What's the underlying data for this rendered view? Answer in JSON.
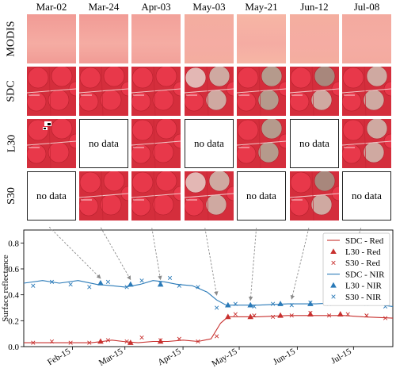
{
  "columns": [
    "Mar-02",
    "Mar-24",
    "Apr-03",
    "May-03",
    "May-21",
    "Jun-12",
    "Jul-08"
  ],
  "rows": [
    {
      "label": "MODIS",
      "key": "modis",
      "tiles": [
        "img",
        "img",
        "img",
        "img",
        "img",
        "img",
        "img"
      ]
    },
    {
      "label": "SDC",
      "key": "sdc",
      "tiles": [
        "img",
        "img",
        "img",
        "img",
        "img",
        "img",
        "img"
      ]
    },
    {
      "label": "L30",
      "key": "l30",
      "tiles": [
        "img",
        "no data",
        "img",
        "no data",
        "img",
        "no data",
        "img"
      ]
    },
    {
      "label": "S30",
      "key": "s30",
      "tiles": [
        "no data",
        "img",
        "img",
        "img",
        "no data",
        "img",
        "no data"
      ]
    }
  ],
  "no_data_text": "no data",
  "colors": {
    "red": "#c8312f",
    "nir": "#2a7ab8",
    "arrow": "#8a8a8a"
  },
  "chart_data": {
    "type": "line",
    "ylabel": "Surface reflectance",
    "xlabel": "",
    "ylim": [
      0,
      0.9
    ],
    "yticks": [
      0,
      0.2,
      0.4,
      0.6,
      0.8
    ],
    "xlim": [
      "2019-01-20",
      "2019-08-05"
    ],
    "xticks": [
      {
        "date": "2019-02-15",
        "label": "Feb-15"
      },
      {
        "date": "2019-03-15",
        "label": "Mar-15"
      },
      {
        "date": "2019-04-15",
        "label": "Apr-15"
      },
      {
        "date": "2019-05-15",
        "label": "May-15"
      },
      {
        "date": "2019-06-15",
        "label": "Jun-15"
      },
      {
        "date": "2019-07-15",
        "label": "Jul-15"
      }
    ],
    "series": [
      {
        "name": "SDC - Red",
        "kind": "line",
        "color": "#c8312f",
        "points": [
          [
            "2019-01-20",
            0.03
          ],
          [
            "2019-02-10",
            0.03
          ],
          [
            "2019-02-25",
            0.03
          ],
          [
            "2019-03-03",
            0.04
          ],
          [
            "2019-03-08",
            0.05
          ],
          [
            "2019-03-14",
            0.04
          ],
          [
            "2019-03-22",
            0.03
          ],
          [
            "2019-03-30",
            0.04
          ],
          [
            "2019-04-07",
            0.04
          ],
          [
            "2019-04-15",
            0.05
          ],
          [
            "2019-04-23",
            0.04
          ],
          [
            "2019-04-30",
            0.06
          ],
          [
            "2019-05-05",
            0.18
          ],
          [
            "2019-05-09",
            0.23
          ],
          [
            "2019-05-25",
            0.23
          ],
          [
            "2019-06-10",
            0.24
          ],
          [
            "2019-06-25",
            0.24
          ],
          [
            "2019-07-10",
            0.24
          ],
          [
            "2019-07-20",
            0.23
          ],
          [
            "2019-08-05",
            0.22
          ]
        ]
      },
      {
        "name": "L30 - Red",
        "kind": "triangle",
        "color": "#c8312f",
        "points": [
          [
            "2019-03-02",
            0.04
          ],
          [
            "2019-03-18",
            0.03
          ],
          [
            "2019-04-03",
            0.04
          ],
          [
            "2019-05-09",
            0.23
          ],
          [
            "2019-05-21",
            0.23
          ],
          [
            "2019-06-06",
            0.24
          ],
          [
            "2019-06-22",
            0.25
          ],
          [
            "2019-07-08",
            0.25
          ]
        ]
      },
      {
        "name": "S30 - Red",
        "kind": "x",
        "color": "#c8312f",
        "points": [
          [
            "2019-01-25",
            0.03
          ],
          [
            "2019-02-04",
            0.04
          ],
          [
            "2019-02-14",
            0.03
          ],
          [
            "2019-02-24",
            0.03
          ],
          [
            "2019-03-06",
            0.05
          ],
          [
            "2019-03-16",
            0.04
          ],
          [
            "2019-03-24",
            0.07
          ],
          [
            "2019-04-03",
            0.05
          ],
          [
            "2019-04-13",
            0.06
          ],
          [
            "2019-04-23",
            0.04
          ],
          [
            "2019-05-03",
            0.08
          ],
          [
            "2019-05-13",
            0.25
          ],
          [
            "2019-05-23",
            0.24
          ],
          [
            "2019-06-02",
            0.23
          ],
          [
            "2019-06-12",
            0.24
          ],
          [
            "2019-06-22",
            0.26
          ],
          [
            "2019-07-02",
            0.24
          ],
          [
            "2019-07-12",
            0.25
          ],
          [
            "2019-07-22",
            0.24
          ],
          [
            "2019-08-01",
            0.22
          ]
        ]
      },
      {
        "name": "SDC - NIR",
        "kind": "line",
        "color": "#2a7ab8",
        "points": [
          [
            "2019-01-20",
            0.49
          ],
          [
            "2019-01-30",
            0.51
          ],
          [
            "2019-02-08",
            0.49
          ],
          [
            "2019-02-18",
            0.51
          ],
          [
            "2019-02-28",
            0.48
          ],
          [
            "2019-03-08",
            0.47
          ],
          [
            "2019-03-15",
            0.46
          ],
          [
            "2019-03-23",
            0.48
          ],
          [
            "2019-03-30",
            0.51
          ],
          [
            "2019-04-05",
            0.5
          ],
          [
            "2019-04-12",
            0.48
          ],
          [
            "2019-04-20",
            0.47
          ],
          [
            "2019-04-28",
            0.42
          ],
          [
            "2019-05-03",
            0.36
          ],
          [
            "2019-05-08",
            0.32
          ],
          [
            "2019-05-25",
            0.32
          ],
          [
            "2019-06-10",
            0.33
          ],
          [
            "2019-06-25",
            0.33
          ],
          [
            "2019-07-08",
            0.34
          ],
          [
            "2019-07-25",
            0.33
          ],
          [
            "2019-08-05",
            0.31
          ]
        ]
      },
      {
        "name": "L30 - NIR",
        "kind": "triangle",
        "color": "#2a7ab8",
        "points": [
          [
            "2019-03-02",
            0.49
          ],
          [
            "2019-03-18",
            0.48
          ],
          [
            "2019-04-03",
            0.48
          ],
          [
            "2019-05-09",
            0.32
          ],
          [
            "2019-05-21",
            0.32
          ],
          [
            "2019-06-06",
            0.33
          ],
          [
            "2019-06-22",
            0.33
          ],
          [
            "2019-07-08",
            0.34
          ]
        ]
      },
      {
        "name": "S30 - NIR",
        "kind": "x",
        "color": "#2a7ab8",
        "points": [
          [
            "2019-01-25",
            0.47
          ],
          [
            "2019-02-04",
            0.5
          ],
          [
            "2019-02-14",
            0.48
          ],
          [
            "2019-02-24",
            0.46
          ],
          [
            "2019-03-06",
            0.5
          ],
          [
            "2019-03-16",
            0.46
          ],
          [
            "2019-03-24",
            0.51
          ],
          [
            "2019-04-03",
            0.49
          ],
          [
            "2019-04-08",
            0.53
          ],
          [
            "2019-04-13",
            0.47
          ],
          [
            "2019-04-23",
            0.46
          ],
          [
            "2019-05-03",
            0.3
          ],
          [
            "2019-05-13",
            0.33
          ],
          [
            "2019-05-23",
            0.31
          ],
          [
            "2019-06-02",
            0.33
          ],
          [
            "2019-06-12",
            0.32
          ],
          [
            "2019-06-22",
            0.34
          ],
          [
            "2019-07-02",
            0.33
          ],
          [
            "2019-07-12",
            0.35
          ],
          [
            "2019-07-22",
            0.33
          ],
          [
            "2019-08-01",
            0.31
          ]
        ]
      }
    ],
    "legend_position": "top-right",
    "annotation_arrows": [
      {
        "column": "Mar-02",
        "to": [
          "2019-03-02",
          0.49
        ]
      },
      {
        "column": "Mar-24",
        "to": [
          "2019-03-18",
          0.48
        ]
      },
      {
        "column": "Apr-03",
        "to": [
          "2019-04-03",
          0.48
        ]
      },
      {
        "column": "May-03",
        "to": [
          "2019-05-03",
          0.36
        ]
      },
      {
        "column": "May-21",
        "to": [
          "2019-05-21",
          0.32
        ]
      },
      {
        "column": "Jun-12",
        "to": [
          "2019-06-12",
          0.33
        ]
      },
      {
        "column": "Jul-08",
        "to": [
          "2019-07-08",
          0.34
        ]
      }
    ]
  }
}
